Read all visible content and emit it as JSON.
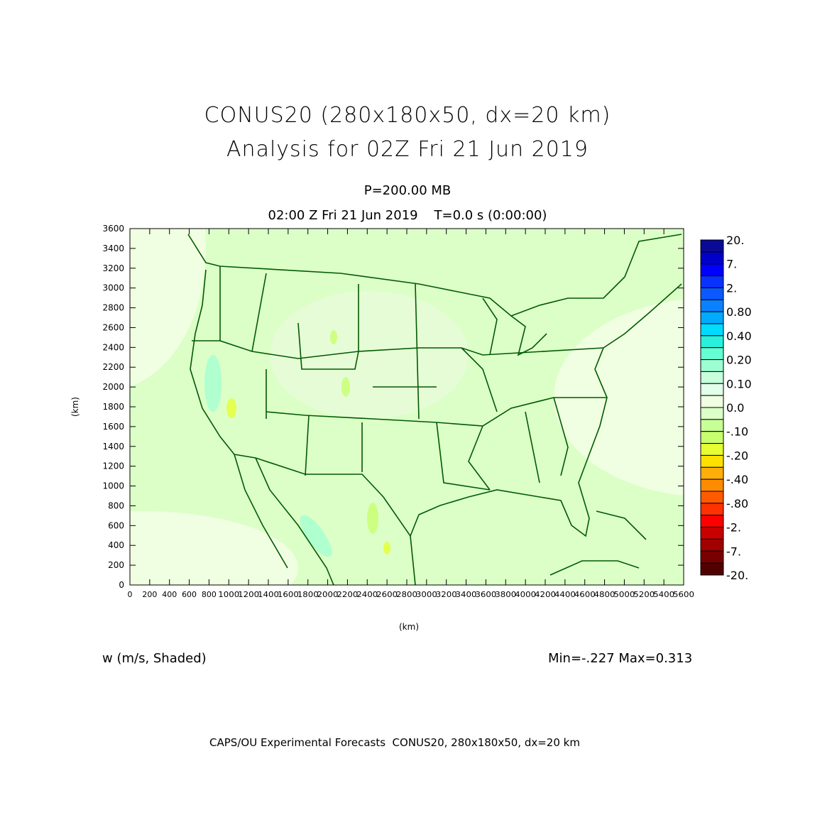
{
  "title": {
    "line1": "CONUS20 (280x180x50, dx=20 km)",
    "line2": "Analysis for 02Z Fri 21 Jun 2019"
  },
  "subtitle": {
    "level": "P=200.00 MB",
    "time": "02:00 Z Fri 21 Jun 2019    T=0.0 s (0:00:00)"
  },
  "axes": {
    "x_label": "(km)",
    "y_label": "(km)",
    "x_range": [
      0,
      5600
    ],
    "y_range": [
      0,
      3600
    ],
    "x_ticks": [
      "0",
      "200",
      "400",
      "600",
      "800",
      "1000",
      "1200",
      "1400",
      "1600",
      "1800",
      "2000",
      "2200",
      "2400",
      "2600",
      "2800",
      "3000",
      "3200",
      "3400",
      "3600",
      "3800",
      "4000",
      "4200",
      "4400",
      "4600",
      "4800",
      "5000",
      "5200",
      "5400",
      "5600"
    ],
    "y_ticks": [
      "0",
      "200",
      "400",
      "600",
      "800",
      "1000",
      "1200",
      "1400",
      "1600",
      "1800",
      "2000",
      "2200",
      "2400",
      "2600",
      "2800",
      "3000",
      "3200",
      "3400",
      "3600"
    ]
  },
  "colorbar": {
    "labels": [
      "20.",
      "7.",
      "2.",
      "0.80",
      "0.40",
      "0.20",
      "0.10",
      "0.0",
      "-.10",
      "-.20",
      "-.40",
      "-.80",
      "-2.",
      "-7.",
      "-20."
    ],
    "colors": [
      "#0a0a96",
      "#0000c8",
      "#0000ff",
      "#0a32ff",
      "#0a5aff",
      "#0a82ff",
      "#00aaff",
      "#00dcff",
      "#28f0dc",
      "#64ffd2",
      "#9bffd2",
      "#c8ffdc",
      "#e1ffea",
      "#f0ffe1",
      "#dcffc8",
      "#c8ff96",
      "#c8ff6e",
      "#e6ff32",
      "#ffe100",
      "#ffaf0a",
      "#ff8c00",
      "#ff5a00",
      "#ff3200",
      "#ff0000",
      "#c80000",
      "#a00000",
      "#780000",
      "#500000"
    ]
  },
  "field": {
    "name": "w (m/s, Shaded)",
    "minmax": "Min=-.227 Max=0.313"
  },
  "map": {
    "outline_color": "#005a00",
    "background": "#dcffc8",
    "light_region": "#f0ffe1"
  },
  "footer": "CAPS/OU Experimental Forecasts  CONUS20, 280x180x50, dx=20 km"
}
